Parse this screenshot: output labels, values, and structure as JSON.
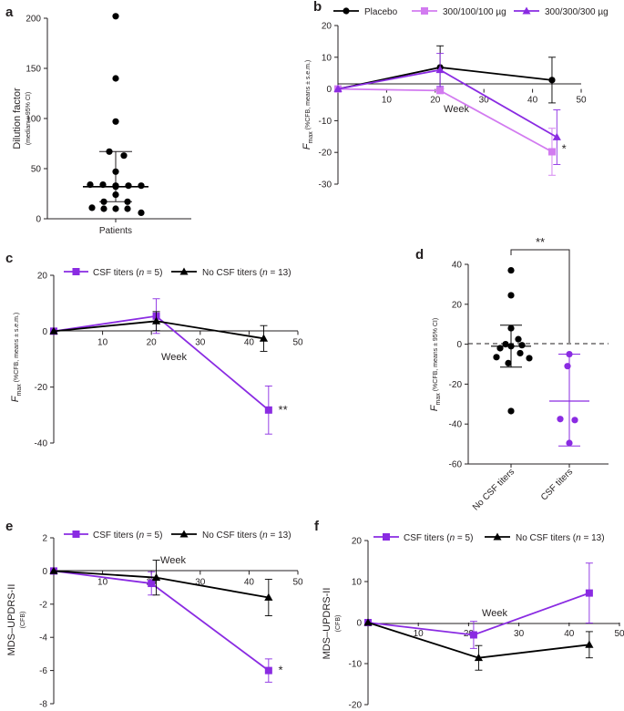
{
  "colors": {
    "black": "#000000",
    "purple": "#8a2be2",
    "light_purple": "#d27bf0",
    "axis": "#231f20"
  },
  "chart_data": [
    {
      "panel": "a",
      "type": "scatter",
      "ylabel": "Dilution factor",
      "ylabel_sub": "(median ± 95% CI)",
      "xticklabels": [
        "Patients"
      ],
      "ylim": [
        0,
        200
      ],
      "yticks": [
        0,
        50,
        100,
        150,
        200
      ],
      "points": [
        202,
        140,
        97,
        67,
        63,
        47,
        34,
        34,
        33,
        33,
        33,
        32,
        24,
        17,
        17,
        11,
        10,
        10,
        10,
        6
      ],
      "median": 32,
      "ci": [
        17,
        67
      ]
    },
    {
      "panel": "b",
      "type": "line",
      "xlabel": "Week",
      "ylabel_main": "F",
      "ylabel_subscript": "max",
      "ylabel_sub": " (%CFB, means ± s.e.m.)",
      "xlim": [
        0,
        50
      ],
      "xticks": [
        10,
        20,
        30,
        40,
        50
      ],
      "ylim": [
        -30,
        20
      ],
      "yticks": [
        -30,
        -20,
        -10,
        0,
        10,
        20
      ],
      "series": [
        {
          "name": "Placebo",
          "marker": "circle",
          "color": "black",
          "x": [
            0,
            21,
            44
          ],
          "y": [
            0,
            6.8,
            2.8
          ],
          "err": [
            0,
            6.8,
            7.2
          ]
        },
        {
          "name": "300/100/100 µg",
          "marker": "square",
          "color": "light_purple",
          "x": [
            0,
            21,
            44
          ],
          "y": [
            0,
            -0.5,
            -19.8
          ],
          "err": [
            0,
            0.8,
            7.4
          ]
        },
        {
          "name": "300/300/300 µg",
          "marker": "triangle",
          "color": "purple",
          "x": [
            0,
            21,
            45
          ],
          "y": [
            0,
            6,
            -15.2
          ],
          "err": [
            0,
            5.2,
            8.6
          ]
        }
      ],
      "annotations": [
        {
          "text": "*",
          "x": 46,
          "y": -19
        }
      ]
    },
    {
      "panel": "c",
      "type": "line",
      "xlabel": "Week",
      "ylabel_main": "F",
      "ylabel_subscript": "max",
      "ylabel_sub": " (%CFB, means ± s.e.m.)",
      "xlim": [
        0,
        50
      ],
      "xticks": [
        10,
        20,
        30,
        40,
        50
      ],
      "ylim": [
        -40,
        20
      ],
      "yticks": [
        -40,
        -20,
        0,
        20
      ],
      "legend_prefix": [
        "CSF titers (",
        "No CSF titers ("
      ],
      "legend_n": [
        "5",
        "13"
      ],
      "series": [
        {
          "name": "CSF titers (n = 5)",
          "marker": "square",
          "color": "purple",
          "x": [
            0,
            21,
            44
          ],
          "y": [
            0,
            5.4,
            -28.2
          ],
          "err": [
            0,
            6.2,
            8.6
          ]
        },
        {
          "name": "No CSF titers (n = 13)",
          "marker": "triangle",
          "color": "black",
          "x": [
            0,
            21,
            43
          ],
          "y": [
            0,
            3.6,
            -2.6
          ],
          "err": [
            0,
            3.4,
            4.6
          ]
        }
      ],
      "annotations": [
        {
          "text": "**",
          "x": 46,
          "y": -28.2
        }
      ]
    },
    {
      "panel": "d",
      "type": "scatter",
      "ylabel_main": "F",
      "ylabel_subscript": "max",
      "ylabel_sub": " (%CFB, means ± 95% CI)",
      "xticklabels": [
        "No CSF titers",
        "CSF titers"
      ],
      "ylim": [
        -60,
        40
      ],
      "yticks": [
        -60,
        -40,
        -20,
        0,
        20,
        40
      ],
      "groups": [
        {
          "name": "No CSF titers",
          "color": "black",
          "points": [
            37,
            24.5,
            8,
            2.5,
            0,
            -0.5,
            -1,
            -2,
            -4.5,
            -6.5,
            -7,
            -9.5,
            -33.5
          ],
          "mean": -1,
          "ci": [
            -11.5,
            9.5
          ]
        },
        {
          "name": "CSF titers",
          "color": "purple",
          "points": [
            -5,
            -11,
            -37.5,
            -38,
            -49.5
          ],
          "mean": -28.5,
          "ci": [
            -51,
            -5
          ]
        }
      ],
      "significance": "**",
      "reference_line": 0
    },
    {
      "panel": "e",
      "type": "line",
      "xlabel": "Week",
      "ylabel": "MDS–UPDRS-II",
      "ylabel_sub": "(CFB)",
      "xlim": [
        0,
        50
      ],
      "xticks": [
        10,
        20,
        30,
        40,
        50
      ],
      "ylim": [
        -8,
        2
      ],
      "yticks": [
        -8,
        -6,
        -4,
        -2,
        0,
        2
      ],
      "legend_prefix": [
        "CSF titers (",
        "No CSF titers ("
      ],
      "legend_n": [
        "5",
        "13"
      ],
      "series": [
        {
          "name": "CSF titers (n = 5)",
          "marker": "square",
          "color": "purple",
          "x": [
            0,
            20,
            44
          ],
          "y": [
            0,
            -0.75,
            -6
          ],
          "err": [
            0,
            0.7,
            0.7
          ]
        },
        {
          "name": "No CSF titers (n = 13)",
          "marker": "triangle",
          "color": "black",
          "x": [
            0,
            21,
            44
          ],
          "y": [
            0,
            -0.4,
            -1.6
          ],
          "err": [
            0,
            1.05,
            1.1
          ]
        }
      ],
      "annotations": [
        {
          "text": "*",
          "x": 46,
          "y": -6
        }
      ]
    },
    {
      "panel": "f",
      "type": "line",
      "xlabel": "Week",
      "ylabel": "MDS–UPDRS-II",
      "ylabel_sub": "(CFB)",
      "xlim": [
        0,
        50
      ],
      "xticks": [
        10,
        20,
        30,
        40,
        50
      ],
      "ylim": [
        -20,
        20
      ],
      "yticks": [
        -20,
        -10,
        0,
        10,
        20
      ],
      "legend_prefix": [
        "CSF titers (",
        "No CSF titers ("
      ],
      "legend_n": [
        "5",
        "13"
      ],
      "series": [
        {
          "name": "CSF titers (n = 5)",
          "marker": "square",
          "color": "purple",
          "x": [
            0,
            21,
            44
          ],
          "y": [
            0,
            -3,
            7.2
          ],
          "err": [
            0,
            3.3,
            7.3
          ]
        },
        {
          "name": "No CSF titers (n = 13)",
          "marker": "triangle",
          "color": "black",
          "x": [
            0,
            22,
            44
          ],
          "y": [
            0,
            -8.6,
            -5.4
          ],
          "err": [
            0,
            3,
            3.2
          ]
        }
      ]
    }
  ]
}
